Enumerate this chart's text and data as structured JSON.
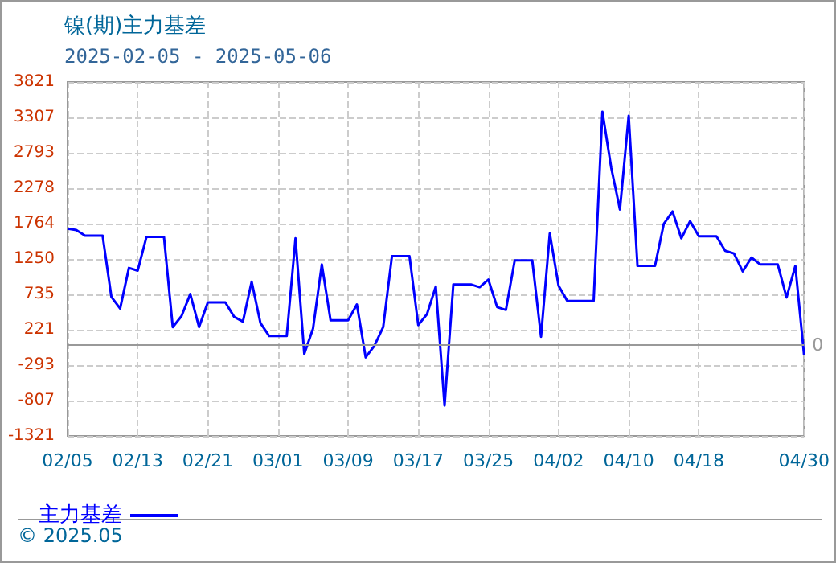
{
  "chart_data": {
    "type": "line",
    "title": "镍(期)主力基差",
    "subtitle": "2025-02-05 - 2025-05-06",
    "annotations": [
      "© 2025.05"
    ],
    "x": [
      "2025-02-05",
      "2025-02-06",
      "2025-02-07",
      "2025-02-09",
      "2025-02-10",
      "2025-02-11",
      "2025-02-12",
      "2025-02-13",
      "2025-02-14",
      "2025-02-16",
      "2025-02-17",
      "2025-02-18",
      "2025-02-19",
      "2025-02-20",
      "2025-02-21",
      "2025-02-23",
      "2025-02-24",
      "2025-02-25",
      "2025-02-26",
      "2025-02-27",
      "2025-02-28",
      "2025-03-02",
      "2025-03-03",
      "2025-03-04",
      "2025-03-05",
      "2025-03-06",
      "2025-03-07",
      "2025-03-09",
      "2025-03-10",
      "2025-03-11",
      "2025-03-12",
      "2025-03-13",
      "2025-03-14",
      "2025-03-16",
      "2025-03-17",
      "2025-03-18",
      "2025-03-19",
      "2025-03-20",
      "2025-03-21",
      "2025-03-23",
      "2025-03-24",
      "2025-03-25",
      "2025-03-26",
      "2025-03-27",
      "2025-03-28",
      "2025-03-30",
      "2025-03-31",
      "2025-04-01",
      "2025-04-02",
      "2025-04-03",
      "2025-04-06",
      "2025-04-07",
      "2025-04-08",
      "2025-04-09",
      "2025-04-10",
      "2025-04-11",
      "2025-04-13",
      "2025-04-14",
      "2025-04-15",
      "2025-04-16",
      "2025-04-17",
      "2025-04-18",
      "2025-04-20",
      "2025-04-21",
      "2025-04-22",
      "2025-04-23",
      "2025-04-24",
      "2025-04-25",
      "2025-04-27",
      "2025-04-28",
      "2025-04-29",
      "2025-04-30"
    ],
    "series": [
      {
        "name": "主力基差",
        "color": "#0000ff",
        "values": [
          1690,
          1670,
          1590,
          1590,
          700,
          530,
          1120,
          1080,
          1570,
          1570,
          260,
          420,
          740,
          260,
          620,
          620,
          410,
          340,
          920,
          320,
          130,
          130,
          1550,
          -130,
          240,
          1170,
          360,
          360,
          590,
          -180,
          -10,
          260,
          1290,
          1290,
          290,
          450,
          850,
          -880,
          880,
          880,
          840,
          950,
          550,
          510,
          1230,
          1230,
          120,
          1620,
          860,
          640,
          640,
          3390,
          2580,
          1970,
          3330,
          1150,
          1150,
          1760,
          1940,
          1550,
          1800,
          1580,
          1580,
          1370,
          1330,
          1070,
          1270,
          1170,
          1170,
          690,
          1150,
          -150
        ]
      }
    ],
    "xlim": [
      "2025-02-05",
      "2025-04-30"
    ],
    "xticks": [
      {
        "value": "2025-02-05",
        "label": "02/05"
      },
      {
        "value": "2025-02-13",
        "label": "02/13"
      },
      {
        "value": "2025-02-21",
        "label": "02/21"
      },
      {
        "value": "2025-03-01",
        "label": "03/01"
      },
      {
        "value": "2025-03-09",
        "label": "03/09"
      },
      {
        "value": "2025-03-17",
        "label": "03/17"
      },
      {
        "value": "2025-03-25",
        "label": "03/25"
      },
      {
        "value": "2025-04-02",
        "label": "04/02"
      },
      {
        "value": "2025-04-10",
        "label": "04/10"
      },
      {
        "value": "2025-04-18",
        "label": "04/18"
      },
      {
        "value": "2025-04-30",
        "label": "04/30"
      }
    ],
    "ylim": [
      -1321,
      3821
    ],
    "yticks": [
      -1321,
      -807,
      -293,
      221,
      735,
      1250,
      1764,
      2278,
      2793,
      3307,
      3821
    ],
    "ref_lines": [
      {
        "axis": "y",
        "value": 0,
        "label": "0",
        "color": "#999999",
        "line_style": "solid"
      }
    ],
    "grid": true,
    "legend": "bottom left",
    "marker": "none",
    "line_style": "solid"
  }
}
